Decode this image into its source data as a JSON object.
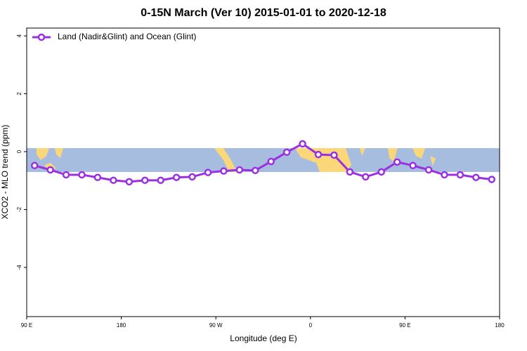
{
  "chart_data": {
    "type": "line",
    "title": "0-15N March (Ver 10)   2015-01-01 to 2020-12-18",
    "xlabel": "Longitude (deg E)",
    "ylabel": "XCO2 - MLO trend (ppm)",
    "x": [
      97.5,
      112.5,
      127.5,
      142.5,
      157.5,
      172.5,
      187.5,
      202.5,
      217.5,
      232.5,
      247.5,
      262.5,
      277.5,
      292.5,
      307.5,
      322.5,
      337.5,
      352.5,
      367.5,
      382.5,
      397.5,
      412.5,
      427.5,
      442.5,
      457.5,
      472.5,
      487.5,
      502.5,
      517.5,
      532.5
    ],
    "series": [
      {
        "name": "Land (Nadir&Glint) and Ocean (Glint)",
        "color": "#9b30e0",
        "values": [
          -0.48,
          -0.63,
          -0.8,
          -0.8,
          -0.89,
          -0.99,
          -1.04,
          -0.99,
          -0.99,
          -0.89,
          -0.87,
          -0.72,
          -0.67,
          -0.63,
          -0.65,
          -0.34,
          -0.02,
          0.27,
          -0.1,
          -0.12,
          -0.7,
          -0.87,
          -0.7,
          -0.36,
          -0.48,
          -0.63,
          -0.8,
          -0.8,
          -0.89,
          -0.96
        ]
      }
    ],
    "xlim": [
      90,
      540
    ],
    "xticks": [
      {
        "value": 90,
        "label": "90 E"
      },
      {
        "value": 180,
        "label": "180"
      },
      {
        "value": 270,
        "label": "90 W"
      },
      {
        "value": 360,
        "label": "0"
      },
      {
        "value": 450,
        "label": "90 E"
      },
      {
        "value": 540,
        "label": "180"
      }
    ],
    "ylim": [
      -5.7,
      4.27
    ],
    "yticks": [
      -4,
      -2,
      0,
      2,
      4
    ],
    "legend": "top-left"
  }
}
